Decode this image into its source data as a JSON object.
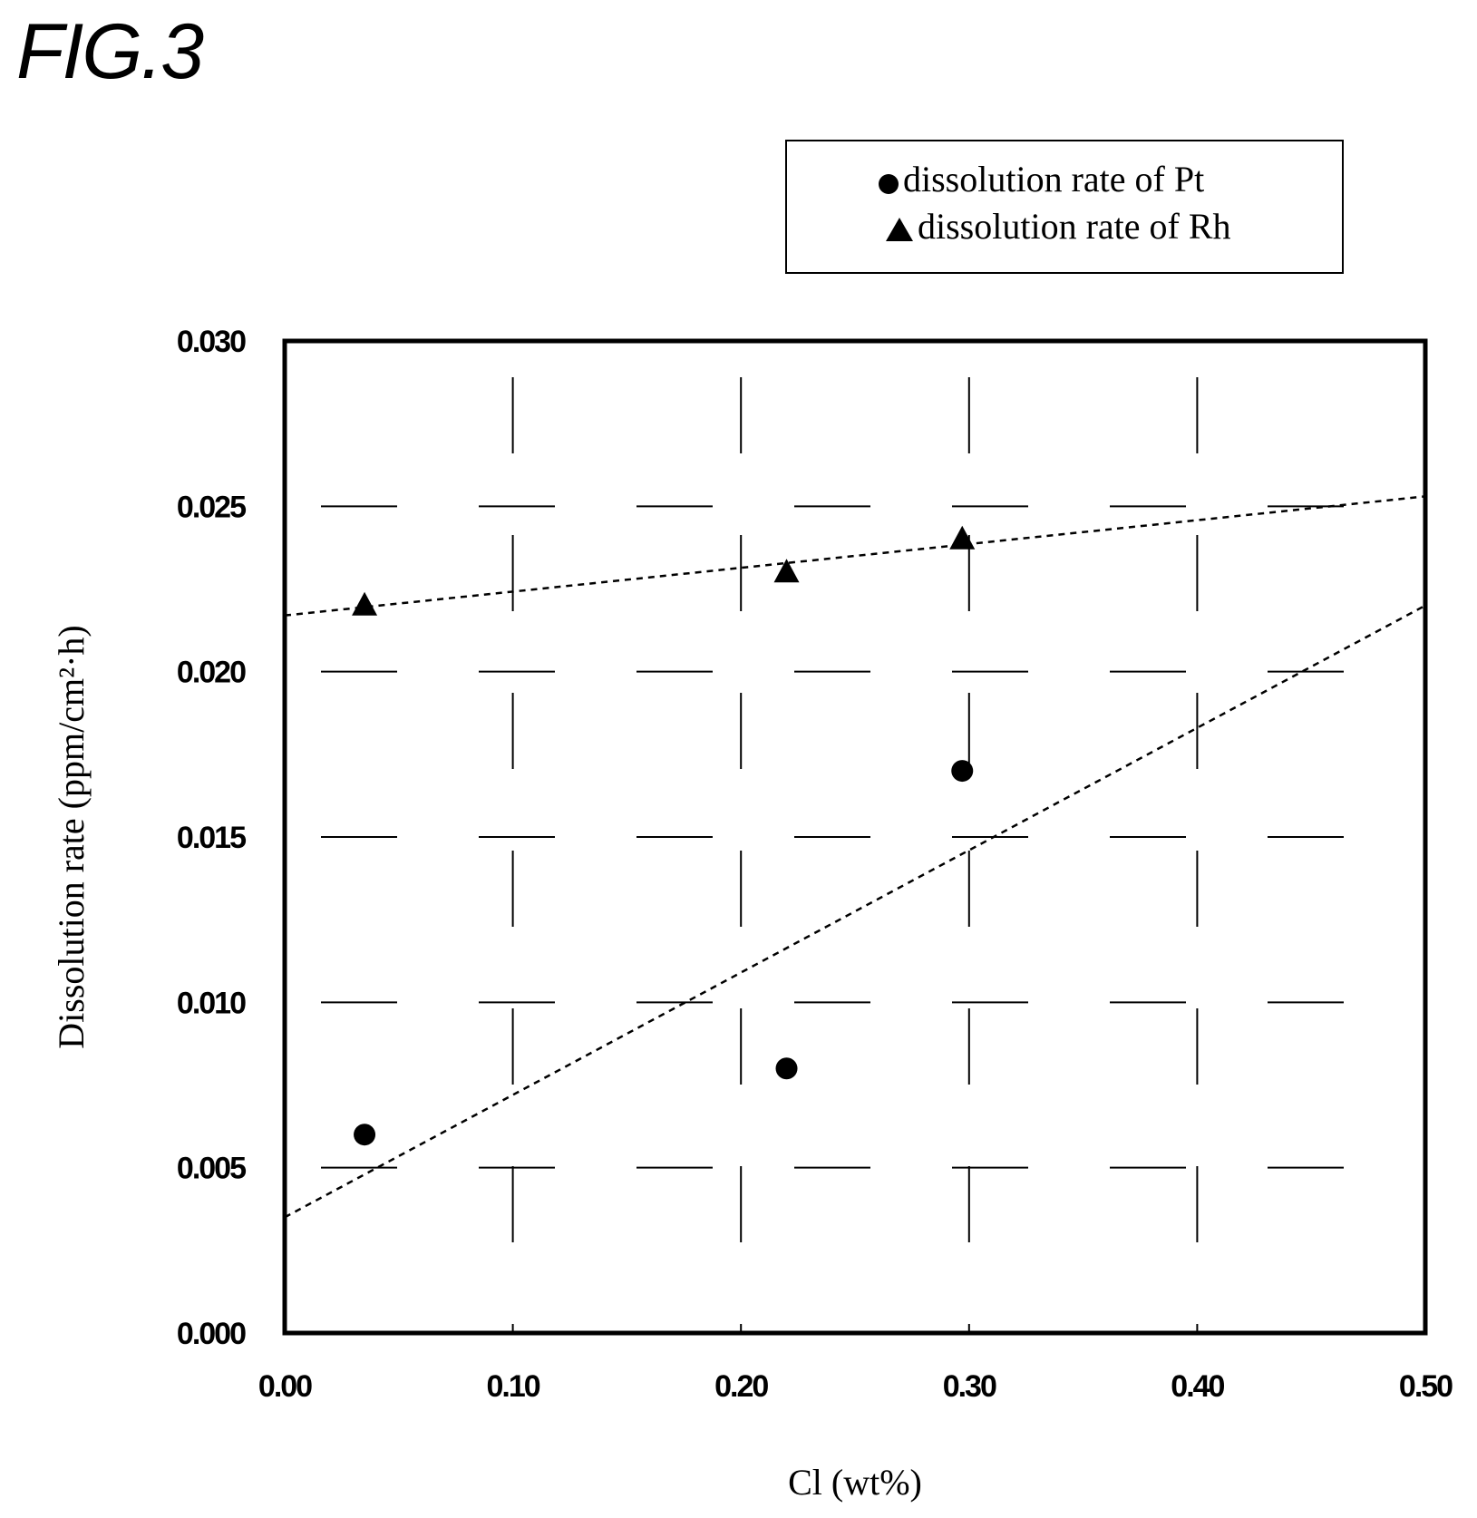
{
  "figure_label": "FIG.3",
  "chart_data": {
    "type": "scatter",
    "title": "",
    "xlabel": "Cl (wt%)",
    "ylabel": "Dissolution rate (ppm/cm²·h)",
    "xlim": [
      0.0,
      0.5
    ],
    "ylim": [
      0.0,
      0.03
    ],
    "x_ticks": [
      "0.00",
      "0.10",
      "0.20",
      "0.30",
      "0.40",
      "0.50"
    ],
    "y_ticks": [
      "0.000",
      "0.005",
      "0.010",
      "0.015",
      "0.020",
      "0.025",
      "0.030"
    ],
    "grid": true,
    "legend_position": "top-right",
    "series": [
      {
        "name": "dissolution rate of Pt",
        "marker": "circle",
        "color": "#000000",
        "x": [
          0.035,
          0.22,
          0.297
        ],
        "y": [
          0.006,
          0.008,
          0.017
        ],
        "trendline": {
          "x": [
            0.0,
            0.5
          ],
          "y": [
            0.0035,
            0.022
          ]
        }
      },
      {
        "name": "dissolution rate of Rh",
        "marker": "triangle",
        "color": "#000000",
        "x": [
          0.035,
          0.22,
          0.297
        ],
        "y": [
          0.022,
          0.023,
          0.024
        ],
        "trendline": {
          "x": [
            0.0,
            0.5
          ],
          "y": [
            0.0217,
            0.0253
          ]
        }
      }
    ]
  }
}
